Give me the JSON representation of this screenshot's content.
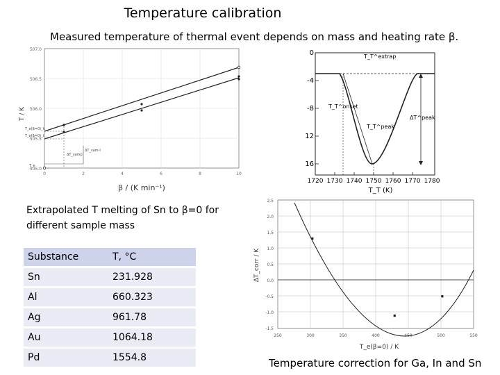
{
  "title": "Temperature calibration",
  "subtitle": "Measured temperature of thermal event depends on mass and heating rate β.",
  "figure1": {
    "y_ticks": [
      "507.0",
      "506.5",
      "506.0",
      "505.5",
      "505.0"
    ],
    "x_ticks": [
      "0",
      "2",
      "4",
      "6",
      "8",
      "10"
    ],
    "y_label": "T / K",
    "x_label": "β / (K min⁻¹)",
    "side_labels": [
      "T_e(β=0)_h",
      "T_e(β=0)_l",
      "T_e"
    ],
    "annotations": [
      "ΔT_samp",
      "ΔT_sam-l"
    ]
  },
  "figure2": {
    "y_ticks": [
      "0",
      "-4",
      "-8",
      "-12",
      "-16"
    ],
    "x_ticks": [
      "1720",
      "1730",
      "1740",
      "1750",
      "1760",
      "1770",
      "1780"
    ],
    "x_label": "T_T (K)",
    "labels": {
      "extrap": "T_T^extrap",
      "onset": "T_T^onset",
      "peak": "T_T^peak",
      "dt_peak": "ΔT^peak"
    }
  },
  "extrapolated_text": "Extrapolated T melting of Sn to β=0 for different sample mass",
  "table": {
    "headers": [
      "Substance",
      "T, °C"
    ],
    "rows": [
      [
        "Sn",
        "231.928"
      ],
      [
        "Al",
        "660.323"
      ],
      [
        "Ag",
        "961.78"
      ],
      [
        "Au",
        "1064.18"
      ],
      [
        "Pd",
        "1554.8"
      ]
    ]
  },
  "figure3": {
    "y_ticks": [
      "2.5",
      "2.0",
      "1.5",
      "1.0",
      "0.5",
      "0.0",
      "-0.5",
      "-1.0",
      "-1.5"
    ],
    "x_ticks": [
      "250",
      "300",
      "350",
      "400",
      "450",
      "500",
      "550"
    ],
    "y_label": "ΔT_corr / K",
    "x_label": "T_e(β=0) / K",
    "points": [
      {
        "x": 303,
        "y": 1.3
      },
      {
        "x": 429,
        "y": -1.1
      },
      {
        "x": 502,
        "y": -0.5
      }
    ]
  },
  "caption": "Temperature correction for Ga, In and Sn"
}
